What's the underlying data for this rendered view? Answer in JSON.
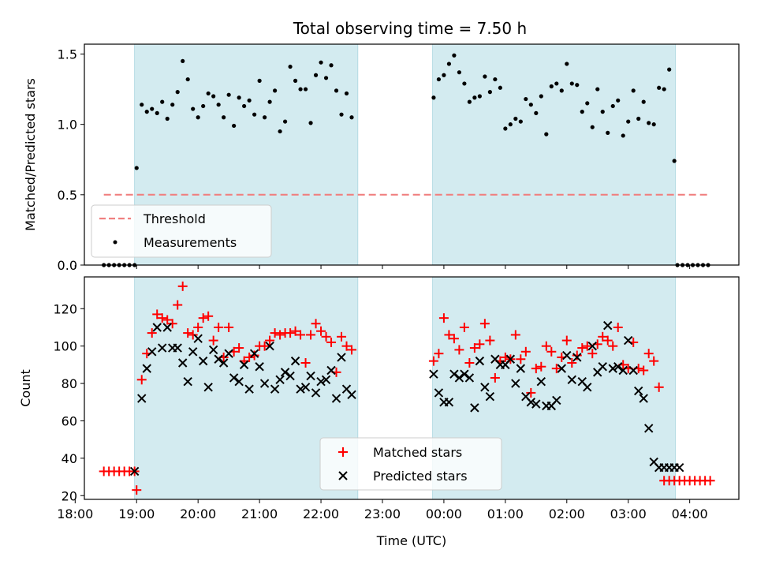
{
  "chart_data": [
    {
      "type": "scatter",
      "title": "Total observing time = 7.50 h",
      "ylabel": "Matched/Predicted stars",
      "xlabel": "",
      "xlim": [
        "18:09",
        "04:48"
      ],
      "ylim": [
        0,
        1.57
      ],
      "yticks": [
        "0.0",
        "0.5",
        "1.0",
        "1.5"
      ],
      "xticks": [
        "18:00",
        "19:00",
        "20:00",
        "21:00",
        "22:00",
        "23:00",
        "00:00",
        "01:00",
        "02:00",
        "03:00",
        "04:00"
      ],
      "shaded_regions": [
        [
          "18:58",
          "22:36"
        ],
        [
          "23:49",
          "03:46"
        ]
      ],
      "shade_color": "#d3ebf0",
      "legend_position": "lower-left",
      "series": [
        {
          "name": "Threshold",
          "kind": "dashed-line",
          "color": "#f08080",
          "x": [
            "18:28",
            "04:20"
          ],
          "y": [
            0.5,
            0.5
          ]
        },
        {
          "name": "Measurements",
          "kind": "dots",
          "color": "#000000",
          "x": [
            "18:28",
            "18:33",
            "18:38",
            "18:43",
            "18:48",
            "18:53",
            "18:58",
            "19:00",
            "19:05",
            "19:10",
            "19:15",
            "19:20",
            "19:25",
            "19:30",
            "19:35",
            "19:40",
            "19:45",
            "19:50",
            "19:55",
            "20:00",
            "20:05",
            "20:10",
            "20:15",
            "20:20",
            "20:25",
            "20:30",
            "20:35",
            "20:40",
            "20:45",
            "20:50",
            "20:55",
            "21:00",
            "21:05",
            "21:10",
            "21:15",
            "21:20",
            "21:25",
            "21:30",
            "21:35",
            "21:40",
            "21:45",
            "21:50",
            "21:55",
            "22:00",
            "22:05",
            "22:10",
            "22:15",
            "22:20",
            "22:25",
            "22:30",
            "23:50",
            "23:55",
            "24:00",
            "24:05",
            "24:10",
            "24:15",
            "24:20",
            "24:25",
            "24:30",
            "24:35",
            "24:40",
            "24:45",
            "24:50",
            "24:55",
            "25:00",
            "25:05",
            "25:10",
            "25:15",
            "25:20",
            "25:25",
            "25:30",
            "25:35",
            "25:40",
            "25:45",
            "25:50",
            "25:55",
            "26:00",
            "26:05",
            "26:10",
            "26:15",
            "26:20",
            "26:25",
            "26:30",
            "26:35",
            "26:40",
            "26:45",
            "26:50",
            "26:55",
            "27:00",
            "27:05",
            "27:10",
            "27:15",
            "27:20",
            "27:25",
            "27:30",
            "27:35",
            "27:40",
            "27:45",
            "27:48",
            "27:53",
            "27:58",
            "28:03",
            "28:08",
            "28:13",
            "28:18"
          ],
          "y": [
            0,
            0,
            0,
            0,
            0,
            0,
            0,
            0.69,
            1.14,
            1.09,
            1.11,
            1.08,
            1.16,
            1.04,
            1.14,
            1.23,
            1.45,
            1.32,
            1.11,
            1.05,
            1.13,
            1.22,
            1.2,
            1.14,
            1.05,
            1.21,
            0.99,
            1.19,
            1.13,
            1.17,
            1.07,
            1.31,
            1.05,
            1.16,
            1.24,
            0.95,
            1.02,
            1.41,
            1.31,
            1.25,
            1.25,
            1.01,
            1.35,
            1.44,
            1.33,
            1.42,
            1.24,
            1.07,
            1.22,
            1.05,
            1.19,
            1.32,
            1.35,
            1.43,
            1.49,
            1.37,
            1.29,
            1.16,
            1.19,
            1.2,
            1.34,
            1.23,
            1.32,
            1.26,
            0.97,
            1.0,
            1.04,
            1.02,
            1.18,
            1.14,
            1.08,
            1.2,
            0.93,
            1.27,
            1.29,
            1.24,
            1.43,
            1.29,
            1.28,
            1.09,
            1.15,
            0.98,
            1.25,
            1.09,
            0.94,
            1.13,
            1.17,
            0.92,
            1.02,
            1.24,
            1.04,
            1.16,
            1.01,
            1.0,
            1.26,
            1.25,
            1.39,
            0.74,
            0,
            0,
            0,
            0,
            0,
            0,
            0
          ]
        }
      ]
    },
    {
      "type": "scatter",
      "title": "",
      "ylabel": "Count",
      "xlabel": "Time (UTC)",
      "xlim": [
        "18:09",
        "04:48"
      ],
      "ylim": [
        18,
        137
      ],
      "yticks": [
        "20",
        "40",
        "60",
        "80",
        "100",
        "120"
      ],
      "xticks": [
        "18:00",
        "19:00",
        "20:00",
        "21:00",
        "22:00",
        "23:00",
        "00:00",
        "01:00",
        "02:00",
        "03:00",
        "04:00"
      ],
      "shaded_regions": [
        [
          "18:58",
          "22:36"
        ],
        [
          "23:49",
          "03:46"
        ]
      ],
      "shade_color": "#d3ebf0",
      "legend_position": "lower-center",
      "series": [
        {
          "name": "Matched stars",
          "kind": "plus",
          "color": "#ff0000",
          "x": [
            "18:28",
            "18:33",
            "18:38",
            "18:43",
            "18:48",
            "18:53",
            "18:58",
            "19:00",
            "19:05",
            "19:10",
            "19:15",
            "19:20",
            "19:25",
            "19:30",
            "19:35",
            "19:40",
            "19:45",
            "19:50",
            "19:55",
            "20:00",
            "20:05",
            "20:10",
            "20:15",
            "20:20",
            "20:25",
            "20:30",
            "20:35",
            "20:40",
            "20:45",
            "20:50",
            "20:55",
            "21:00",
            "21:05",
            "21:10",
            "21:15",
            "21:20",
            "21:25",
            "21:30",
            "21:35",
            "21:40",
            "21:45",
            "21:50",
            "21:55",
            "22:00",
            "22:05",
            "22:10",
            "22:15",
            "22:20",
            "22:25",
            "22:30",
            "23:50",
            "23:55",
            "24:00",
            "24:05",
            "24:10",
            "24:15",
            "24:20",
            "24:25",
            "24:30",
            "24:35",
            "24:40",
            "24:45",
            "24:50",
            "24:55",
            "25:00",
            "25:05",
            "25:10",
            "25:15",
            "25:20",
            "25:25",
            "25:30",
            "25:35",
            "25:40",
            "25:45",
            "25:50",
            "25:55",
            "26:00",
            "26:05",
            "26:10",
            "26:15",
            "26:20",
            "26:25",
            "26:30",
            "26:35",
            "26:40",
            "26:45",
            "26:50",
            "26:55",
            "27:00",
            "27:05",
            "27:10",
            "27:15",
            "27:20",
            "27:25",
            "27:30",
            "27:35",
            "27:40",
            "27:45",
            "27:50",
            "27:55",
            "28:00",
            "28:05",
            "28:10",
            "28:15",
            "28:20"
          ],
          "y": [
            33,
            33,
            33,
            33,
            33,
            33,
            33,
            23,
            82,
            96,
            107,
            117,
            115,
            114,
            112,
            122,
            132,
            107,
            106,
            110,
            115,
            116,
            103,
            110,
            94,
            110,
            97,
            99,
            92,
            94,
            95,
            100,
            100,
            103,
            107,
            106,
            107,
            107,
            108,
            106,
            91,
            106,
            112,
            108,
            105,
            102,
            86,
            105,
            100,
            98,
            92,
            96,
            115,
            106,
            104,
            98,
            110,
            91,
            99,
            101,
            112,
            103,
            83,
            92,
            94,
            93,
            106,
            93,
            97,
            75,
            88,
            89,
            100,
            97,
            88,
            94,
            103,
            91,
            95,
            99,
            100,
            96,
            101,
            105,
            103,
            100,
            110,
            90,
            88,
            102,
            88,
            87,
            96,
            92,
            78,
            28,
            28,
            28,
            28,
            28,
            28,
            28,
            28,
            28,
            28
          ]
        },
        {
          "name": "Predicted stars",
          "kind": "x",
          "color": "#000000",
          "x": [
            "18:58",
            "19:05",
            "19:10",
            "19:15",
            "19:20",
            "19:25",
            "19:30",
            "19:35",
            "19:40",
            "19:45",
            "19:50",
            "19:55",
            "20:00",
            "20:05",
            "20:10",
            "20:15",
            "20:20",
            "20:25",
            "20:30",
            "20:35",
            "20:40",
            "20:45",
            "20:50",
            "20:55",
            "21:00",
            "21:05",
            "21:10",
            "21:15",
            "21:20",
            "21:25",
            "21:30",
            "21:35",
            "21:40",
            "21:45",
            "21:50",
            "21:55",
            "22:00",
            "22:05",
            "22:10",
            "22:15",
            "22:20",
            "22:25",
            "22:30",
            "23:50",
            "23:55",
            "24:00",
            "24:05",
            "24:10",
            "24:15",
            "24:20",
            "24:25",
            "24:30",
            "24:35",
            "24:40",
            "24:45",
            "24:50",
            "24:55",
            "25:00",
            "25:05",
            "25:10",
            "25:15",
            "25:20",
            "25:25",
            "25:30",
            "25:35",
            "25:40",
            "25:45",
            "25:50",
            "25:55",
            "26:00",
            "26:05",
            "26:10",
            "26:15",
            "26:20",
            "26:25",
            "26:30",
            "26:35",
            "26:40",
            "26:45",
            "26:50",
            "26:55",
            "27:00",
            "27:05",
            "27:10",
            "27:15",
            "27:20",
            "27:25",
            "27:30",
            "27:35",
            "27:40",
            "27:45",
            "27:50"
          ],
          "y": [
            33,
            72,
            88,
            97,
            110,
            99,
            110,
            99,
            99,
            91,
            81,
            97,
            104,
            92,
            78,
            98,
            93,
            91,
            96,
            83,
            81,
            90,
            77,
            96,
            89,
            80,
            100,
            77,
            82,
            86,
            84,
            92,
            77,
            78,
            84,
            75,
            81,
            82,
            87,
            72,
            94,
            77,
            74,
            85,
            75,
            70,
            70,
            85,
            83,
            85,
            83,
            67,
            92,
            78,
            73,
            93,
            90,
            90,
            93,
            80,
            88,
            73,
            70,
            69,
            81,
            68,
            68,
            71,
            88,
            95,
            82,
            94,
            81,
            78,
            100,
            86,
            89,
            111,
            88,
            89,
            87,
            103,
            87,
            76,
            72,
            56,
            38,
            35,
            35,
            35,
            35,
            35
          ]
        }
      ]
    }
  ]
}
